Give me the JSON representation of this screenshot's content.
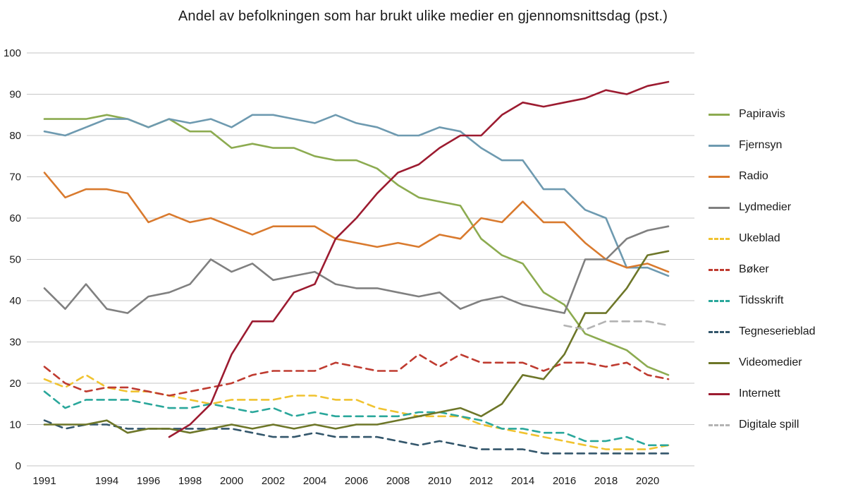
{
  "chart_data": {
    "type": "line",
    "title": "Andel av befolkningen som har brukt ulike medier en gjennomsnittsdag (pst.)",
    "xlabel": "",
    "ylabel": "",
    "ylim": [
      0,
      100
    ],
    "y_ticks": [
      0,
      10,
      20,
      30,
      40,
      50,
      60,
      70,
      80,
      90,
      100
    ],
    "grid": "horizontal",
    "legend_position": "right",
    "x": [
      1991,
      1992,
      1993,
      1994,
      1995,
      1996,
      1997,
      1998,
      1999,
      2000,
      2001,
      2002,
      2003,
      2004,
      2005,
      2006,
      2007,
      2008,
      2009,
      2010,
      2011,
      2012,
      2013,
      2014,
      2015,
      2016,
      2017,
      2018,
      2019,
      2020,
      2021
    ],
    "x_tick_labels": [
      "1991",
      "1994",
      "1996",
      "1998",
      "2000",
      "2002",
      "2004",
      "2006",
      "2008",
      "2010",
      "2012",
      "2014",
      "2016",
      "2018",
      "2020"
    ],
    "series": [
      {
        "id": "papiravis",
        "name": "Papiravis",
        "color": "#8cab50",
        "dash": false,
        "values": [
          84,
          84,
          84,
          85,
          84,
          82,
          84,
          81,
          81,
          77,
          78,
          77,
          77,
          75,
          74,
          74,
          72,
          68,
          65,
          64,
          63,
          55,
          51,
          49,
          42,
          39,
          32,
          30,
          28,
          24,
          22
        ]
      },
      {
        "id": "fjernsyn",
        "name": "Fjernsyn",
        "color": "#6e9ab0",
        "dash": false,
        "values": [
          81,
          80,
          82,
          84,
          84,
          82,
          84,
          83,
          84,
          82,
          85,
          85,
          84,
          83,
          85,
          83,
          82,
          80,
          80,
          82,
          81,
          77,
          74,
          74,
          67,
          67,
          62,
          60,
          48,
          48,
          46
        ]
      },
      {
        "id": "radio",
        "name": "Radio",
        "color": "#d97a2e",
        "dash": false,
        "values": [
          71,
          65,
          67,
          67,
          66,
          59,
          61,
          59,
          60,
          58,
          56,
          58,
          58,
          58,
          55,
          54,
          53,
          54,
          53,
          56,
          55,
          60,
          59,
          64,
          59,
          59,
          54,
          50,
          48,
          49,
          47
        ]
      },
      {
        "id": "lydmedier",
        "name": "Lydmedier",
        "color": "#808080",
        "dash": false,
        "values": [
          43,
          38,
          44,
          38,
          37,
          41,
          42,
          44,
          50,
          47,
          49,
          45,
          46,
          47,
          44,
          43,
          43,
          42,
          41,
          42,
          38,
          40,
          41,
          39,
          38,
          37,
          50,
          50,
          55,
          57,
          58
        ]
      },
      {
        "id": "ukeblad",
        "name": "Ukeblad",
        "color": "#f0c330",
        "dash": true,
        "values": [
          21,
          19,
          22,
          19,
          18,
          18,
          17,
          16,
          15,
          16,
          16,
          16,
          17,
          17,
          16,
          16,
          14,
          13,
          12,
          12,
          12,
          10,
          9,
          8,
          7,
          6,
          5,
          4,
          4,
          4,
          5
        ]
      },
      {
        "id": "boker",
        "name": "Bøker",
        "color": "#bf3b30",
        "dash": true,
        "values": [
          24,
          20,
          18,
          19,
          19,
          18,
          17,
          18,
          19,
          20,
          22,
          23,
          23,
          23,
          25,
          24,
          23,
          23,
          27,
          24,
          27,
          25,
          25,
          25,
          23,
          25,
          25,
          24,
          25,
          22,
          21
        ]
      },
      {
        "id": "tidsskrift",
        "name": "Tidsskrift",
        "color": "#2aa79b",
        "dash": true,
        "values": [
          18,
          14,
          16,
          16,
          16,
          15,
          14,
          14,
          15,
          14,
          13,
          14,
          12,
          13,
          12,
          12,
          12,
          12,
          13,
          13,
          12,
          11,
          9,
          9,
          8,
          8,
          6,
          6,
          7,
          5,
          5
        ]
      },
      {
        "id": "tegneserieblad",
        "name": "Tegneserieblad",
        "color": "#33566b",
        "dash": true,
        "values": [
          11,
          9,
          10,
          10,
          9,
          9,
          9,
          9,
          9,
          9,
          8,
          7,
          7,
          8,
          7,
          7,
          7,
          6,
          5,
          6,
          5,
          4,
          4,
          4,
          3,
          3,
          3,
          3,
          3,
          3,
          3
        ]
      },
      {
        "id": "videomedier",
        "name": "Videomedier",
        "color": "#6d7628",
        "dash": false,
        "values": [
          10,
          10,
          10,
          11,
          8,
          9,
          9,
          8,
          9,
          10,
          9,
          10,
          9,
          10,
          9,
          10,
          10,
          11,
          12,
          13,
          14,
          12,
          15,
          22,
          21,
          27,
          37,
          37,
          43,
          51,
          52
        ]
      },
      {
        "id": "internett",
        "name": "Internett",
        "color": "#9c1b30",
        "dash": false,
        "values": [
          null,
          null,
          null,
          null,
          null,
          null,
          7,
          10,
          15,
          27,
          35,
          35,
          42,
          44,
          55,
          60,
          66,
          71,
          73,
          77,
          80,
          80,
          85,
          88,
          87,
          88,
          89,
          91,
          90,
          92,
          93
        ]
      },
      {
        "id": "digitale-spill",
        "name": "Digitale spill",
        "color": "#b3b3b3",
        "dash": true,
        "values": [
          null,
          null,
          null,
          null,
          null,
          null,
          null,
          null,
          null,
          null,
          null,
          null,
          null,
          null,
          null,
          null,
          null,
          null,
          null,
          null,
          null,
          null,
          null,
          null,
          null,
          34,
          33,
          35,
          35,
          35,
          34
        ]
      }
    ]
  }
}
